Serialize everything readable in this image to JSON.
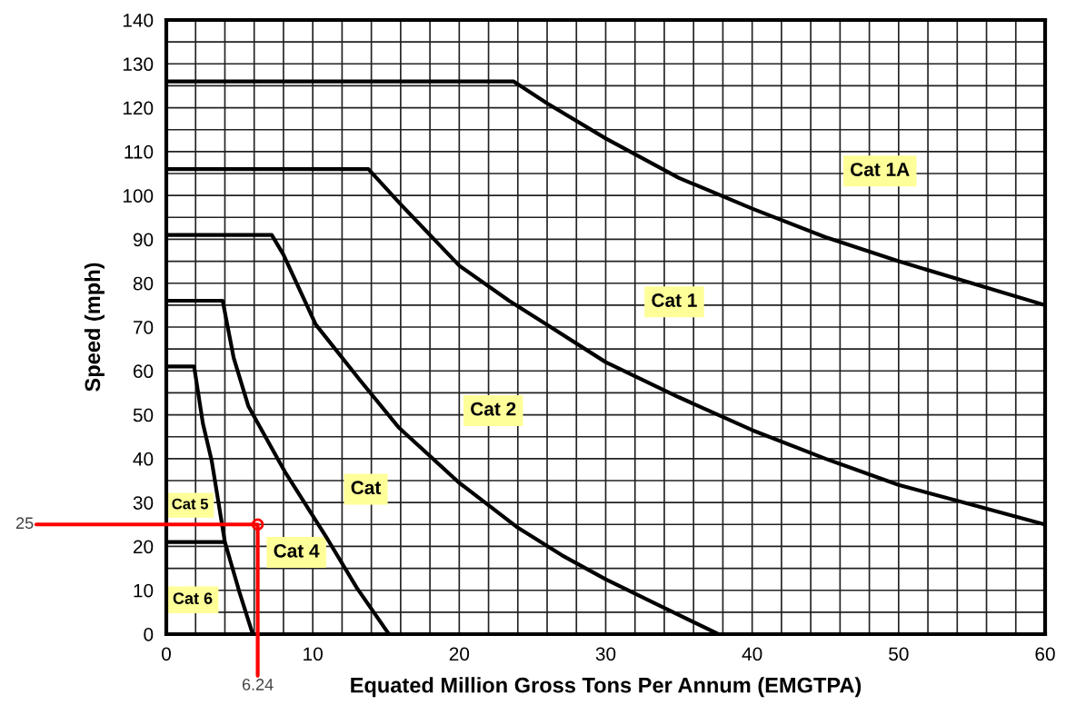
{
  "chart_data": {
    "type": "line",
    "xlabel": "Equated Million Gross Tons Per Annum (EMGTPA)",
    "ylabel": "Speed (mph)",
    "xlim": [
      0,
      60
    ],
    "ylim": [
      0,
      140
    ],
    "xticks": [
      0,
      {
        "value": 2,
        "label": null
      },
      {
        "value": 4,
        "label": null
      },
      {
        "value": 6,
        "label": null
      },
      {
        "value": 8,
        "label": null
      },
      10,
      {
        "value": 12,
        "label": null
      },
      {
        "value": 14,
        "label": null
      },
      {
        "value": 16,
        "label": null
      },
      {
        "value": 18,
        "label": null
      },
      20,
      {
        "value": 22,
        "label": null
      },
      {
        "value": 24,
        "label": null
      },
      {
        "value": 26,
        "label": null
      },
      {
        "value": 28,
        "label": null
      },
      30,
      {
        "value": 32,
        "label": null
      },
      {
        "value": 34,
        "label": null
      },
      {
        "value": 36,
        "label": null
      },
      {
        "value": 38,
        "label": null
      },
      40,
      {
        "value": 42,
        "label": null
      },
      {
        "value": 44,
        "label": null
      },
      {
        "value": 46,
        "label": null
      },
      {
        "value": 48,
        "label": null
      },
      50,
      {
        "value": 52,
        "label": null
      },
      {
        "value": 54,
        "label": null
      },
      {
        "value": 56,
        "label": null
      },
      {
        "value": 58,
        "label": null
      },
      60
    ],
    "yticks": [
      0,
      {
        "value": 5,
        "label": null
      },
      10,
      {
        "value": 15,
        "label": null
      },
      20,
      {
        "value": 25,
        "label": null
      },
      30,
      {
        "value": 35,
        "label": null
      },
      40,
      {
        "value": 45,
        "label": null
      },
      50,
      {
        "value": 55,
        "label": null
      },
      60,
      {
        "value": 65,
        "label": null
      },
      70,
      {
        "value": 75,
        "label": null
      },
      80,
      {
        "value": 85,
        "label": null
      },
      90,
      {
        "value": 95,
        "label": null
      },
      100,
      {
        "value": 105,
        "label": null
      },
      110,
      {
        "value": 115,
        "label": null
      },
      120,
      {
        "value": 125,
        "label": null
      },
      130,
      {
        "value": 135,
        "label": null
      },
      140
    ],
    "grid": true,
    "marker": "none",
    "line_style": "solid",
    "series": [
      {
        "color": "#000000",
        "x": [
          0,
          23.7,
          26,
          30,
          35,
          40,
          45,
          50,
          55,
          60
        ],
        "values": [
          126,
          126,
          121,
          113,
          104,
          97,
          90.5,
          85,
          80,
          75
        ]
      },
      {
        "color": "#000000",
        "x": [
          0,
          13.8,
          16,
          18,
          20,
          23.4,
          26,
          30,
          35,
          40,
          45,
          50,
          55,
          60
        ],
        "values": [
          106,
          106,
          98,
          91,
          84,
          76,
          70.5,
          62,
          54,
          46.5,
          40,
          34,
          29.5,
          25
        ]
      },
      {
        "color": "#000000",
        "x": [
          0,
          7.2,
          8,
          10.2,
          13.2,
          15.9,
          20,
          23.9,
          27,
          30,
          34,
          37.7
        ],
        "values": [
          91,
          91,
          86.5,
          70.6,
          58,
          47,
          34.5,
          24.5,
          18,
          12.5,
          6,
          0
        ]
      },
      {
        "color": "#000000",
        "x": [
          0,
          3.85,
          4.6,
          5.6,
          8.1,
          11,
          13,
          15.2
        ],
        "values": [
          76,
          76,
          63,
          52,
          37,
          21.7,
          10.6,
          0
        ]
      },
      {
        "color": "#000000",
        "x": [
          0,
          1.9,
          2.5,
          3.1,
          4.0,
          5,
          5.9
        ],
        "values": [
          61,
          61,
          48,
          39.5,
          21,
          9.5,
          0
        ]
      },
      {
        "color": "#000000",
        "x": [
          0,
          3.9
        ],
        "values": [
          21,
          21
        ]
      },
      {
        "color": "#ff0000",
        "x": [
          0,
          6.24,
          6.24
        ],
        "values": [
          25,
          25,
          0
        ]
      },
      {
        "type": "scatter",
        "marker": "circle",
        "color": "#ff0000",
        "x": [
          6.24
        ],
        "values": [
          25
        ]
      }
    ],
    "annotations": [
      "Cat 1A",
      "Cat 1",
      "Cat 2",
      "Cat",
      "Cat 5",
      "Cat 4",
      "Cat 6",
      {
        "text": "25",
        "x": 0,
        "y": 25
      },
      {
        "text": "6.24",
        "x": 6.24,
        "y": 0
      }
    ]
  }
}
